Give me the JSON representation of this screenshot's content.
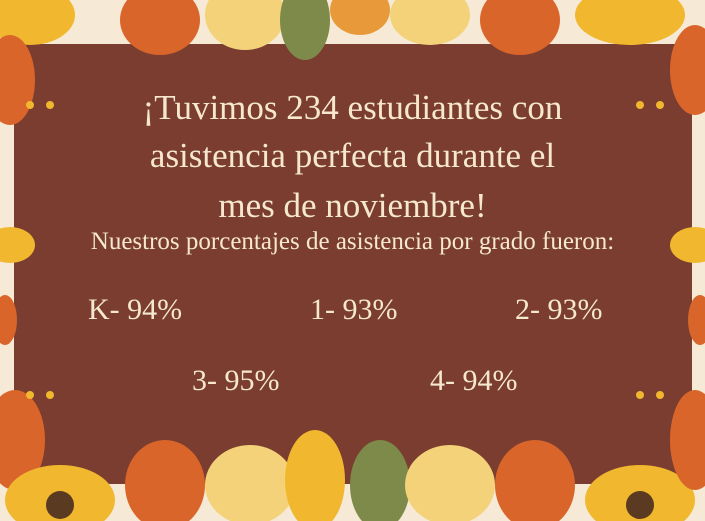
{
  "headline": {
    "line1": "¡Tuvimos 234 estudiantes con",
    "line2": "asistencia perfecta durante el",
    "line3": "mes de noviembre!"
  },
  "subtitle": "Nuestros porcentajes de asistencia por grado fueron:",
  "grades": [
    {
      "label": "K- 94%",
      "grade": "K",
      "percent": 94
    },
    {
      "label": "1- 93%",
      "grade": "1",
      "percent": 93
    },
    {
      "label": "2- 93%",
      "grade": "2",
      "percent": 93
    },
    {
      "label": "3- 95%",
      "grade": "3",
      "percent": 95
    },
    {
      "label": "4- 94%",
      "grade": "4",
      "percent": 94
    }
  ],
  "colors": {
    "panel": "#7a3d2f",
    "text": "#f6e7cf",
    "border_bg": "#f6ead6",
    "leaf_orange": "#d9652a",
    "leaf_yellow": "#f0b72f",
    "leaf_green": "#7d8a4a"
  }
}
